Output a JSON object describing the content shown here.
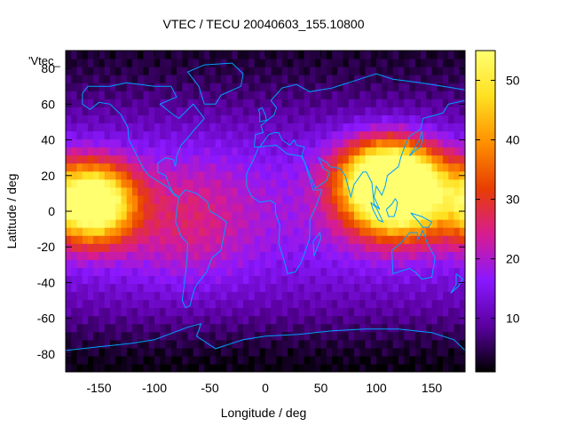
{
  "chart_data": {
    "type": "heatmap",
    "title": "VTEC / TECU 20040603_155.10800",
    "xlabel": "Longitude / deg",
    "ylabel": "Latitude / deg",
    "legend_key": "'Vtec_",
    "xlim": [
      -180,
      180
    ],
    "ylim": [
      -90,
      90
    ],
    "x_ticks": [
      -150,
      -100,
      -50,
      0,
      50,
      100,
      150
    ],
    "y_ticks": [
      -80,
      -60,
      -40,
      -20,
      0,
      20,
      40,
      60,
      80
    ],
    "colorbar": {
      "range": [
        1,
        55
      ],
      "ticks": [
        10,
        20,
        30,
        40,
        50
      ],
      "palette": [
        "#000000",
        "#5a00a0",
        "#8a18ff",
        "#d81c90",
        "#e83e00",
        "#ff9000",
        "#ffe020",
        "#ffff70"
      ]
    },
    "coastline_color": "#00a0ff",
    "tec_blobs": [
      {
        "lon": 120,
        "lat": 8,
        "peak": 48,
        "sigma_lon": 32,
        "sigma_lat": 16
      },
      {
        "lon": -155,
        "lat": 5,
        "peak": 50,
        "sigma_lon": 25,
        "sigma_lat": 15
      },
      {
        "lon": 110,
        "lat": 22,
        "peak": 34,
        "sigma_lon": 30,
        "sigma_lat": 14
      },
      {
        "lon": -70,
        "lat": -5,
        "peak": 8,
        "sigma_lon": 40,
        "sigma_lat": 25
      }
    ]
  }
}
